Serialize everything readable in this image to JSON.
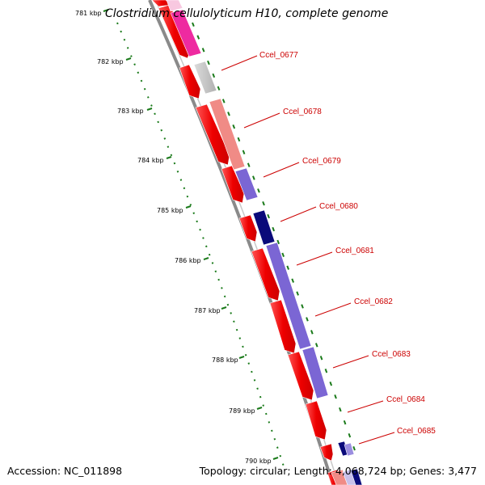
{
  "title": "Clostridium cellulolyticum H10, complete genome",
  "footer": {
    "accession": "Accession: NC_011898",
    "summary": "Topology: circular; Length: 4,068,724 bp; Genes: 3,477"
  },
  "scale_labels": [
    "781 kbp",
    "782 kbp",
    "783 kbp",
    "784 kbp",
    "785 kbp",
    "786 kbp",
    "787 kbp",
    "788 kbp",
    "789 kbp",
    "790 kbp"
  ],
  "gene_labels": [
    "Ccel_0677",
    "Ccel_0678",
    "Ccel_0679",
    "Ccel_0680",
    "Ccel_0681",
    "Ccel_0682",
    "Ccel_0683",
    "Ccel_0684",
    "Ccel_0685"
  ],
  "colors": {
    "gene_red": "#ee0000",
    "label_red": "#cc0000",
    "tick_green": "#1a7a1a",
    "backbone_gray": "#8a8a8a"
  }
}
